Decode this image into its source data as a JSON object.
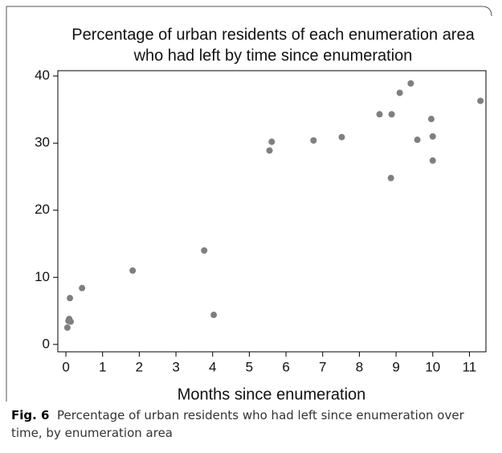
{
  "chart_data": {
    "type": "scatter",
    "title": "Percentage of urban residents of each enumeration area who had left by time since enumeration",
    "x_label": "Months since enumeration",
    "caption_label": "Fig. 6",
    "caption": "Percentage of urban residents who had left since enumeration over time, by enumeration area",
    "color": "#7f7f7f",
    "x": [
      0.04,
      0.07,
      0.09,
      0.13,
      0.11,
      0.44,
      1.82,
      3.77,
      4.03,
      5.55,
      5.61,
      6.75,
      7.52,
      8.55,
      8.88,
      8.86,
      9.1,
      9.4,
      9.58,
      9.96,
      10.0,
      10.0,
      11.3
    ],
    "values": [
      2.5,
      3.5,
      3.8,
      3.4,
      6.9,
      8.4,
      11.0,
      14.0,
      4.4,
      28.9,
      30.2,
      30.4,
      30.9,
      34.3,
      34.3,
      24.8,
      37.5,
      38.9,
      30.5,
      33.6,
      31.0,
      27.4,
      36.3
    ],
    "xlim": [
      -0.22,
      11.45
    ],
    "ylim": [
      -1.1,
      40.8
    ],
    "xticks": [
      0,
      1,
      2,
      3,
      4,
      5,
      6,
      7,
      8,
      9,
      10,
      11
    ],
    "yticks": [
      0,
      10,
      20,
      30,
      40
    ]
  }
}
